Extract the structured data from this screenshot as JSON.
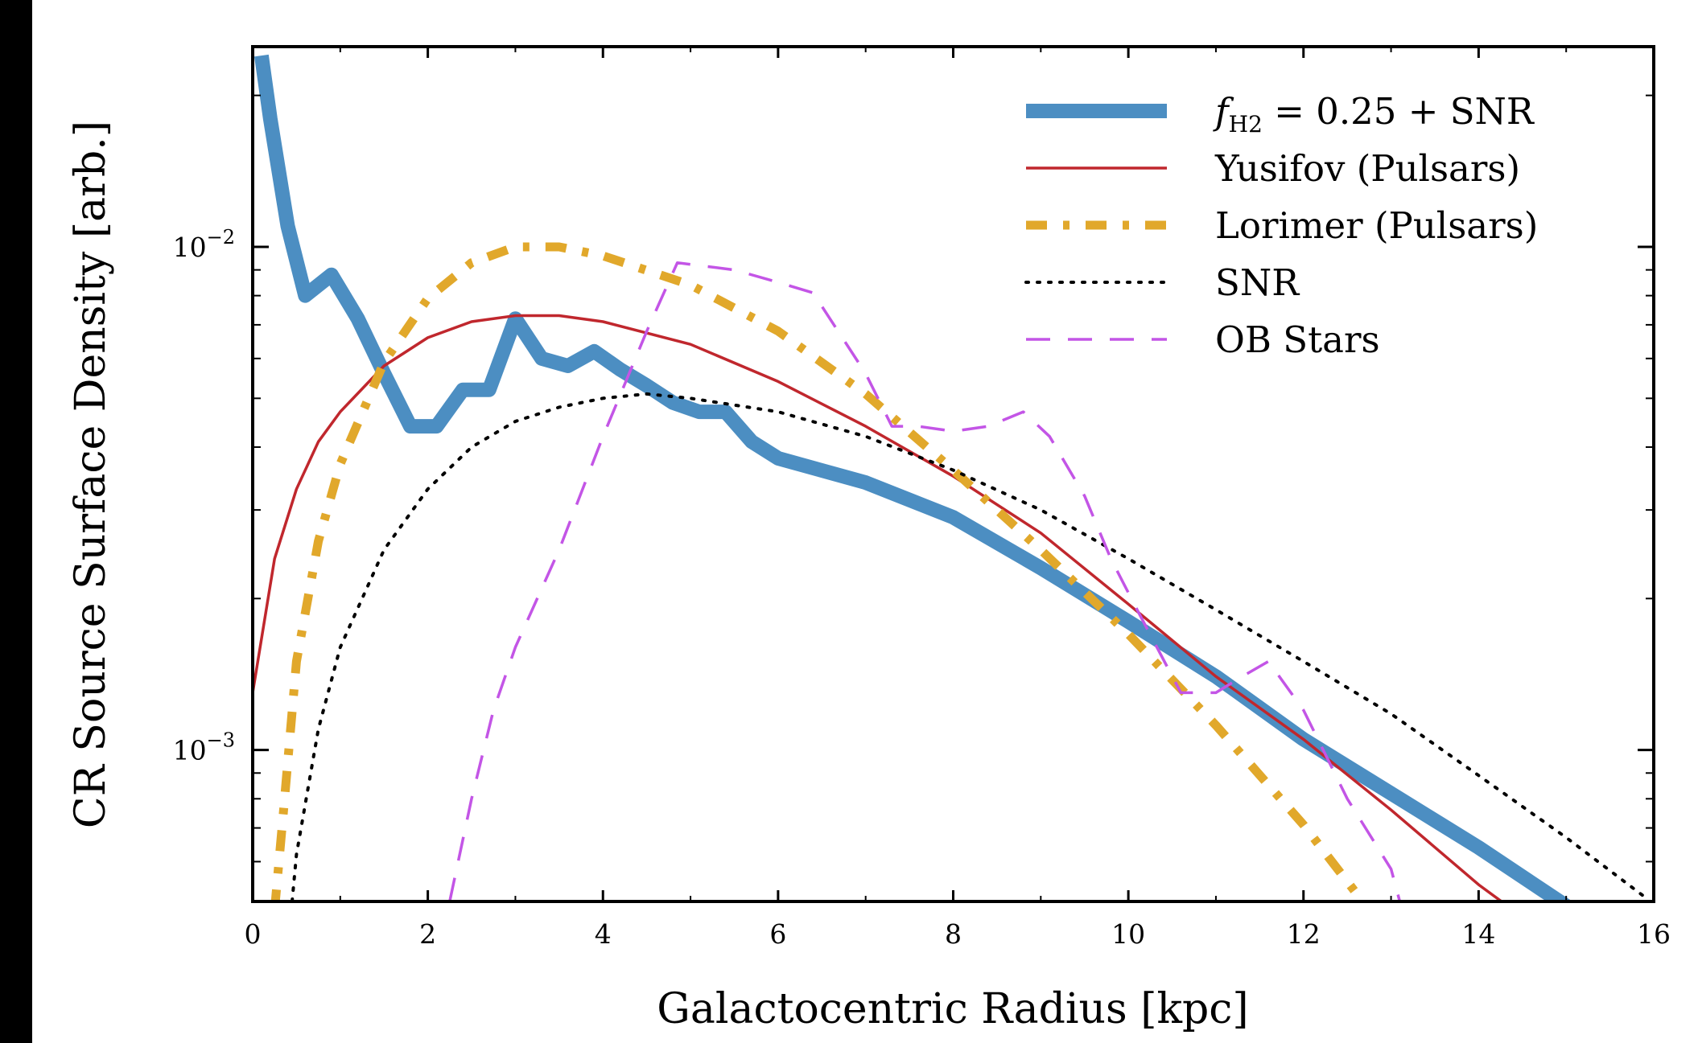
{
  "chart_data": {
    "type": "line",
    "title": "",
    "xlabel": "Galactocentric Radius [kpc]",
    "ylabel": "CR Source Surface Density [arb.]",
    "xlim": [
      0,
      16
    ],
    "ylim": [
      0.0005,
      0.025
    ],
    "yscale": "log",
    "grid": false,
    "legend_position": "top-right",
    "x_ticks": [
      {
        "value": 0,
        "label": "0"
      },
      {
        "value": 2,
        "label": "2"
      },
      {
        "value": 4,
        "label": "4"
      },
      {
        "value": 6,
        "label": "6"
      },
      {
        "value": 8,
        "label": "8"
      },
      {
        "value": 10,
        "label": "10"
      },
      {
        "value": 12,
        "label": "12"
      },
      {
        "value": 14,
        "label": "14"
      },
      {
        "value": 16,
        "label": "16"
      }
    ],
    "y_ticks": [
      {
        "value": 0.01,
        "base": "10",
        "exp": "−2"
      },
      {
        "value": 0.001,
        "base": "10",
        "exp": "−3"
      }
    ],
    "series": [
      {
        "name": "f_H2 = 0.25 + SNR",
        "legend_main": "f",
        "legend_sub": "H2",
        "legend_rest": " = 0.25 + SNR",
        "color": "#4c8ec2",
        "style": "thick-solid",
        "x": [
          0.1,
          0.2,
          0.4,
          0.6,
          0.9,
          1.2,
          1.5,
          1.8,
          2.1,
          2.4,
          2.7,
          3.0,
          3.3,
          3.6,
          3.9,
          4.2,
          4.5,
          4.8,
          5.1,
          5.4,
          5.7,
          6.0,
          7.0,
          8.0,
          9.0,
          10.0,
          11.0,
          12.0,
          13.0,
          14.0,
          15.0
        ],
        "y": [
          0.024,
          0.018,
          0.011,
          0.008,
          0.0088,
          0.0072,
          0.0056,
          0.0044,
          0.0044,
          0.0052,
          0.0052,
          0.0072,
          0.006,
          0.0058,
          0.0062,
          0.0057,
          0.0053,
          0.0049,
          0.0047,
          0.0047,
          0.0041,
          0.0038,
          0.0034,
          0.0029,
          0.0023,
          0.0018,
          0.0014,
          0.00105,
          0.00082,
          0.00064,
          0.00049
        ]
      },
      {
        "name": "Yusifov (Pulsars)",
        "legend_main": "Yusifov (Pulsars)",
        "color": "#c0272d",
        "style": "thin-solid",
        "x": [
          0.0,
          0.25,
          0.5,
          0.75,
          1.0,
          1.5,
          2.0,
          2.5,
          3.0,
          3.5,
          4.0,
          5.0,
          6.0,
          7.0,
          8.0,
          9.0,
          10.0,
          11.0,
          12.0,
          13.0,
          14.0,
          14.4
        ],
        "y": [
          0.0013,
          0.0024,
          0.0033,
          0.0041,
          0.0047,
          0.0058,
          0.0066,
          0.0071,
          0.0073,
          0.0073,
          0.0071,
          0.0064,
          0.0054,
          0.0044,
          0.0035,
          0.0027,
          0.00195,
          0.0014,
          0.00105,
          0.00076,
          0.00054,
          0.00048
        ]
      },
      {
        "name": "Lorimer (Pulsars)",
        "legend_main": "Lorimer (Pulsars)",
        "color": "#e1a82b",
        "style": "thick-dashdot",
        "x": [
          0.25,
          0.35,
          0.5,
          0.75,
          1.0,
          1.5,
          2.0,
          2.5,
          3.0,
          3.5,
          4.0,
          5.0,
          6.0,
          7.0,
          8.0,
          9.0,
          10.0,
          11.0,
          12.0,
          12.6
        ],
        "y": [
          0.00048,
          0.00075,
          0.0015,
          0.0026,
          0.0037,
          0.0059,
          0.0079,
          0.0093,
          0.01,
          0.01,
          0.0096,
          0.0084,
          0.0068,
          0.0051,
          0.0036,
          0.0025,
          0.0017,
          0.00112,
          0.00071,
          0.00052
        ]
      },
      {
        "name": "SNR",
        "legend_main": "SNR",
        "color": "#000000",
        "style": "dotted",
        "x": [
          0.45,
          0.5,
          0.75,
          1.0,
          1.5,
          2.0,
          2.5,
          3.0,
          3.5,
          4.0,
          4.5,
          5.0,
          6.0,
          7.0,
          8.0,
          9.0,
          10.0,
          11.0,
          12.0,
          13.0,
          14.0,
          15.0,
          15.9
        ],
        "y": [
          0.0005,
          0.00062,
          0.0011,
          0.0016,
          0.0025,
          0.0033,
          0.004,
          0.0045,
          0.0048,
          0.005,
          0.0051,
          0.005,
          0.0047,
          0.0042,
          0.0036,
          0.003,
          0.0024,
          0.0019,
          0.0015,
          0.00118,
          0.00089,
          0.00067,
          0.00051
        ]
      },
      {
        "name": "OB Stars",
        "legend_main": "OB Stars",
        "color": "#c355e6",
        "style": "dashed",
        "x": [
          2.25,
          2.5,
          2.75,
          3.0,
          3.5,
          4.0,
          4.5,
          4.85,
          5.5,
          6.0,
          6.4,
          7.0,
          7.3,
          7.6,
          8.0,
          8.4,
          8.8,
          9.1,
          9.5,
          9.8,
          10.1,
          10.6,
          11.0,
          11.3,
          11.6,
          12.0,
          12.5,
          13.0,
          13.1
        ],
        "y": [
          0.0005,
          0.0008,
          0.0012,
          0.0016,
          0.0025,
          0.0042,
          0.0068,
          0.0093,
          0.009,
          0.0085,
          0.0081,
          0.0056,
          0.0044,
          0.0044,
          0.0043,
          0.0044,
          0.0047,
          0.0042,
          0.0032,
          0.0024,
          0.0019,
          0.0013,
          0.0013,
          0.0014,
          0.0015,
          0.0012,
          0.0008,
          0.00058,
          0.0005
        ]
      }
    ]
  }
}
